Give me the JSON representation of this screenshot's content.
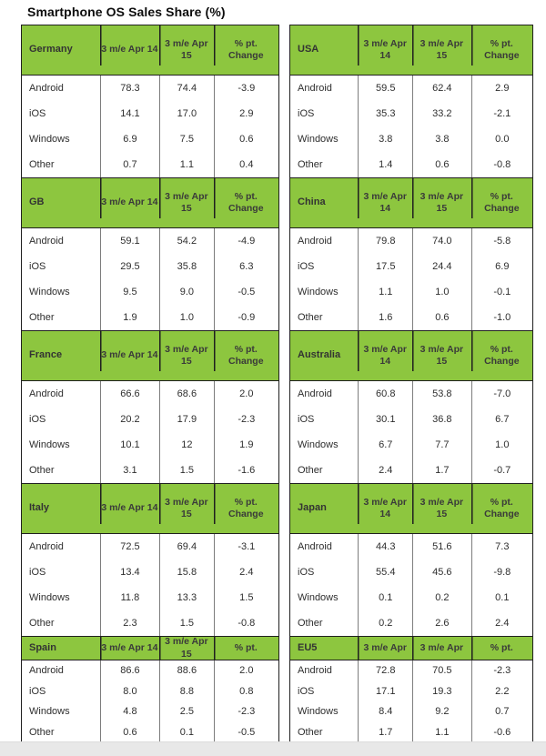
{
  "title": "Smartphone OS Sales Share (%)",
  "colors": {
    "header_green": "#8dc63f",
    "border_dark": "#1f1f1f",
    "body_divider": "#7d7d7d",
    "page_footer_gray": "#e8e8e8"
  },
  "columns": [
    {
      "side": "left",
      "tables": [
        {
          "country": "Germany",
          "short": false,
          "headers": [
            "3 m/e Apr 14",
            "3 m/e Apr 15",
            "% pt.\nChange"
          ],
          "rows": [
            [
              "Android",
              "78.3",
              "74.4",
              "-3.9"
            ],
            [
              "iOS",
              "14.1",
              "17.0",
              "2.9"
            ],
            [
              "Windows",
              "6.9",
              "7.5",
              "0.6"
            ],
            [
              "Other",
              "0.7",
              "1.1",
              "0.4"
            ]
          ]
        },
        {
          "country": "GB",
          "short": false,
          "headers": [
            "3 m/e Apr 14",
            "3 m/e Apr 15",
            "% pt.\nChange"
          ],
          "rows": [
            [
              "Android",
              "59.1",
              "54.2",
              "-4.9"
            ],
            [
              "iOS",
              "29.5",
              "35.8",
              "6.3"
            ],
            [
              "Windows",
              "9.5",
              "9.0",
              "-0.5"
            ],
            [
              "Other",
              "1.9",
              "1.0",
              "-0.9"
            ]
          ]
        },
        {
          "country": "France",
          "short": false,
          "headers": [
            "3 m/e Apr 14",
            "3 m/e Apr 15",
            "% pt.\nChange"
          ],
          "rows": [
            [
              "Android",
              "66.6",
              "68.6",
              "2.0"
            ],
            [
              "iOS",
              "20.2",
              "17.9",
              "-2.3"
            ],
            [
              "Windows",
              "10.1",
              "12",
              "1.9"
            ],
            [
              "Other",
              "3.1",
              "1.5",
              "-1.6"
            ]
          ]
        },
        {
          "country": "Italy",
          "short": false,
          "headers": [
            "3 m/e Apr 14",
            "3 m/e Apr 15",
            "% pt.\nChange"
          ],
          "rows": [
            [
              "Android",
              "72.5",
              "69.4",
              "-3.1"
            ],
            [
              "iOS",
              "13.4",
              "15.8",
              "2.4"
            ],
            [
              "Windows",
              "11.8",
              "13.3",
              "1.5"
            ],
            [
              "Other",
              "2.3",
              "1.5",
              "-0.8"
            ]
          ]
        },
        {
          "country": "Spain",
          "short": true,
          "headers": [
            "3 m/e Apr 14",
            "3 m/e Apr 15",
            "% pt."
          ],
          "rows": [
            [
              "Android",
              "86.6",
              "88.6",
              "2.0"
            ],
            [
              "iOS",
              "8.0",
              "8.8",
              "0.8"
            ],
            [
              "Windows",
              "4.8",
              "2.5",
              "-2.3"
            ],
            [
              "Other",
              "0.6",
              "0.1",
              "-0.5"
            ]
          ]
        }
      ]
    },
    {
      "side": "right",
      "tables": [
        {
          "country": "USA",
          "short": false,
          "headers": [
            "3 m/e Apr\n14",
            "3 m/e Apr\n15",
            "% pt.\nChange"
          ],
          "rows": [
            [
              "Android",
              "59.5",
              "62.4",
              "2.9"
            ],
            [
              "iOS",
              "35.3",
              "33.2",
              "-2.1"
            ],
            [
              "Windows",
              "3.8",
              "3.8",
              "0.0"
            ],
            [
              "Other",
              "1.4",
              "0.6",
              "-0.8"
            ]
          ]
        },
        {
          "country": "China",
          "short": false,
          "headers": [
            "3 m/e Apr\n14",
            "3 m/e Apr\n15",
            "% pt.\nChange"
          ],
          "rows": [
            [
              "Android",
              "79.8",
              "74.0",
              "-5.8"
            ],
            [
              "iOS",
              "17.5",
              "24.4",
              "6.9"
            ],
            [
              "Windows",
              "1.1",
              "1.0",
              "-0.1"
            ],
            [
              "Other",
              "1.6",
              "0.6",
              "-1.0"
            ]
          ]
        },
        {
          "country": "Australia",
          "short": false,
          "headers": [
            "3 m/e Apr\n14",
            "3 m/e Apr\n15",
            "% pt.\nChange"
          ],
          "rows": [
            [
              "Android",
              "60.8",
              "53.8",
              "-7.0"
            ],
            [
              "iOS",
              "30.1",
              "36.8",
              "6.7"
            ],
            [
              "Windows",
              "6.7",
              "7.7",
              "1.0"
            ],
            [
              "Other",
              "2.4",
              "1.7",
              "-0.7"
            ]
          ]
        },
        {
          "country": "Japan",
          "short": false,
          "headers": [
            "3 m/e Apr\n14",
            "3 m/e Apr\n15",
            "% pt.\nChange"
          ],
          "rows": [
            [
              "Android",
              "44.3",
              "51.6",
              "7.3"
            ],
            [
              "iOS",
              "55.4",
              "45.6",
              "-9.8"
            ],
            [
              "Windows",
              "0.1",
              "0.2",
              "0.1"
            ],
            [
              "Other",
              "0.2",
              "2.6",
              "2.4"
            ]
          ]
        },
        {
          "country": "EU5",
          "short": true,
          "headers": [
            "3 m/e Apr",
            "3 m/e Apr",
            "% pt."
          ],
          "rows": [
            [
              "Android",
              "72.8",
              "70.5",
              "-2.3"
            ],
            [
              "iOS",
              "17.1",
              "19.3",
              "2.2"
            ],
            [
              "Windows",
              "8.4",
              "9.2",
              "0.7"
            ],
            [
              "Other",
              "1.7",
              "1.1",
              "-0.6"
            ]
          ]
        }
      ]
    }
  ]
}
